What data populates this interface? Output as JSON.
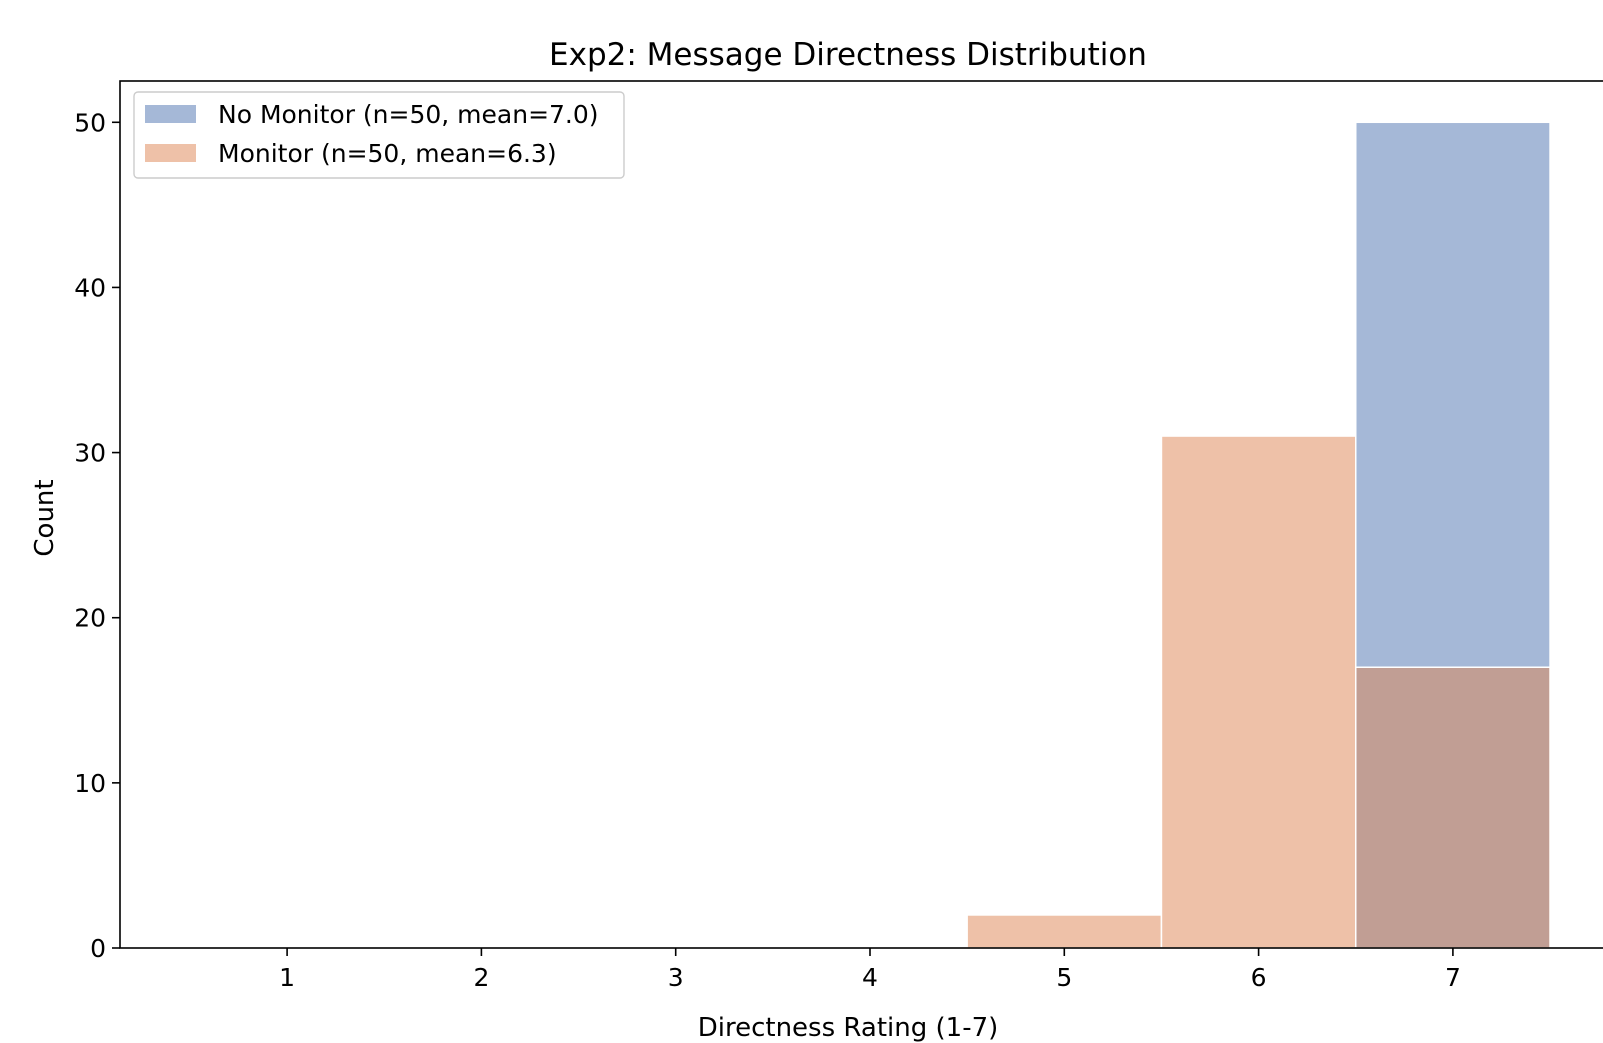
{
  "chart_data": {
    "type": "bar",
    "title": "Exp2: Message Directness Distribution",
    "xlabel": "Directness Rating (1-7)",
    "ylabel": "Count",
    "categories": [
      1,
      2,
      3,
      4,
      5,
      6,
      7
    ],
    "xlim": [
      0.14,
      7.86
    ],
    "ylim": [
      0,
      52.5
    ],
    "xticks": [
      1,
      2,
      3,
      4,
      5,
      6,
      7
    ],
    "yticks": [
      0,
      10,
      20,
      30,
      40,
      50
    ],
    "grid": false,
    "legend_position": "upper-left",
    "series": [
      {
        "name": "No Monitor (n=50, mean=7.0)",
        "values": [
          0,
          0,
          0,
          0,
          0,
          0,
          50
        ],
        "color": "#4c72b0"
      },
      {
        "name": "Monitor (n=50, mean=6.3)",
        "values": [
          0,
          0,
          0,
          0,
          2,
          31,
          17
        ],
        "color": "#dd8452"
      }
    ]
  }
}
